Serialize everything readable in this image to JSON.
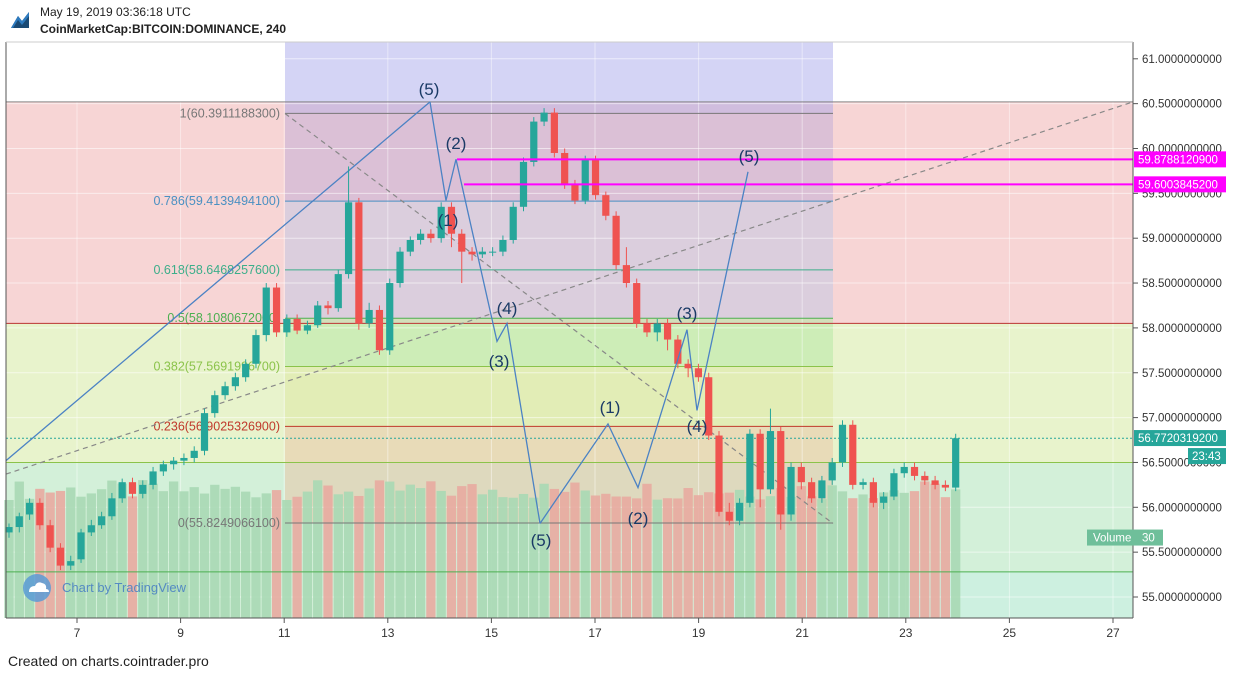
{
  "header": {
    "timestamp": "May 19, 2019 03:36:18 UTC",
    "symbol": "CoinMarketCap:BITCOIN:DOMINANCE, 240"
  },
  "footer": {
    "credit": "Created on charts.cointrader.pro"
  },
  "watermark": {
    "text": "Chart by TradingView"
  },
  "colors": {
    "up": "#26a69a",
    "down": "#ef5350",
    "magenta": "#ff00ff",
    "wave": "#4b82c4",
    "fib_zone": "#9fa0e8",
    "red_zone": "#f4c7c7",
    "green_zone": "#c8ecd0",
    "lime_zone": "#e6f2c6"
  },
  "chart_data": {
    "type": "candlestick",
    "x_axis": {
      "ticks": [
        "7",
        "9",
        "11",
        "13",
        "15",
        "17",
        "19",
        "21",
        "23",
        "25",
        "27"
      ]
    },
    "y_axis": {
      "ylim": [
        54.7,
        61.2
      ],
      "ticks": [
        "61.0000000000",
        "60.5000000000",
        "60.0000000000",
        "59.5000000000",
        "59.0000000000",
        "58.5000000000",
        "58.0000000000",
        "57.5000000000",
        "57.0000000000",
        "56.5000000000",
        "56.0000000000",
        "55.5000000000",
        "55.0000000000"
      ]
    },
    "candles": [
      [
        55.72,
        55.78,
        55.66,
        55.82
      ],
      [
        55.78,
        55.9,
        55.72,
        55.94
      ],
      [
        55.92,
        56.05,
        55.86,
        56.1
      ],
      [
        56.05,
        55.8,
        55.75,
        56.1
      ],
      [
        55.8,
        55.55,
        55.5,
        55.86
      ],
      [
        55.55,
        55.35,
        55.3,
        55.6
      ],
      [
        55.35,
        55.4,
        55.3,
        55.46
      ],
      [
        55.42,
        55.72,
        55.38,
        55.76
      ],
      [
        55.72,
        55.8,
        55.68,
        55.86
      ],
      [
        55.8,
        55.9,
        55.76,
        55.95
      ],
      [
        55.9,
        56.1,
        55.86,
        56.16
      ],
      [
        56.1,
        56.28,
        56.05,
        56.32
      ],
      [
        56.28,
        56.15,
        56.1,
        56.33
      ],
      [
        56.15,
        56.25,
        56.1,
        56.3
      ],
      [
        56.25,
        56.4,
        56.2,
        56.45
      ],
      [
        56.4,
        56.48,
        56.35,
        56.52
      ],
      [
        56.48,
        56.52,
        56.42,
        56.56
      ],
      [
        56.52,
        56.55,
        56.47,
        56.6
      ],
      [
        56.55,
        56.63,
        56.5,
        56.68
      ],
      [
        56.63,
        57.05,
        56.58,
        57.1
      ],
      [
        57.05,
        57.25,
        57.0,
        57.3
      ],
      [
        57.25,
        57.35,
        57.2,
        57.4
      ],
      [
        57.35,
        57.45,
        57.3,
        57.5
      ],
      [
        57.45,
        57.6,
        57.4,
        57.65
      ],
      [
        57.6,
        57.92,
        57.55,
        57.98
      ],
      [
        57.92,
        58.45,
        57.85,
        58.5
      ],
      [
        58.45,
        57.95,
        57.9,
        58.5
      ],
      [
        57.95,
        58.1,
        57.9,
        58.15
      ],
      [
        58.1,
        57.97,
        57.93,
        58.15
      ],
      [
        57.97,
        58.03,
        57.93,
        58.08
      ],
      [
        58.03,
        58.25,
        58.0,
        58.3
      ],
      [
        58.25,
        58.22,
        58.15,
        58.3
      ],
      [
        58.22,
        58.6,
        58.18,
        58.65
      ],
      [
        58.6,
        59.4,
        58.55,
        59.8
      ],
      [
        59.4,
        58.05,
        57.98,
        59.45
      ],
      [
        58.05,
        58.2,
        58.0,
        58.28
      ],
      [
        58.2,
        57.75,
        57.7,
        58.25
      ],
      [
        57.75,
        58.5,
        57.7,
        58.55
      ],
      [
        58.5,
        58.85,
        58.45,
        58.9
      ],
      [
        58.85,
        58.98,
        58.8,
        59.02
      ],
      [
        58.98,
        59.05,
        58.93,
        59.1
      ],
      [
        59.05,
        59.0,
        58.95,
        59.1
      ],
      [
        59.0,
        59.35,
        58.95,
        59.4
      ],
      [
        59.35,
        59.05,
        58.9,
        59.4
      ],
      [
        59.05,
        58.85,
        58.5,
        59.1
      ],
      [
        58.85,
        58.82,
        58.75,
        58.9
      ],
      [
        58.82,
        58.85,
        58.78,
        58.9
      ],
      [
        58.85,
        58.85,
        58.8,
        58.9
      ],
      [
        58.85,
        58.98,
        58.8,
        59.03
      ],
      [
        58.98,
        59.35,
        58.94,
        59.4
      ],
      [
        59.35,
        59.85,
        59.3,
        59.9
      ],
      [
        59.85,
        60.3,
        59.8,
        60.35
      ],
      [
        60.3,
        60.4,
        60.25,
        60.45
      ],
      [
        60.4,
        59.95,
        59.9,
        60.45
      ],
      [
        59.95,
        59.6,
        59.55,
        60.0
      ],
      [
        59.6,
        59.42,
        59.38,
        59.65
      ],
      [
        59.42,
        59.88,
        59.38,
        59.92
      ],
      [
        59.88,
        59.48,
        59.43,
        59.92
      ],
      [
        59.48,
        59.25,
        59.2,
        59.52
      ],
      [
        59.25,
        58.7,
        58.65,
        59.3
      ],
      [
        58.7,
        58.5,
        58.45,
        58.9
      ],
      [
        58.5,
        58.05,
        58.0,
        58.55
      ],
      [
        58.05,
        57.95,
        57.9,
        58.1
      ],
      [
        57.95,
        58.05,
        57.85,
        58.1
      ],
      [
        58.05,
        57.87,
        57.75,
        58.1
      ],
      [
        57.87,
        57.6,
        57.55,
        57.92
      ],
      [
        57.6,
        57.55,
        57.45,
        57.65
      ],
      [
        57.55,
        57.45,
        57.4,
        57.6
      ],
      [
        57.45,
        56.8,
        56.75,
        57.5
      ],
      [
        56.8,
        55.95,
        55.9,
        56.85
      ],
      [
        55.95,
        55.85,
        55.8,
        56.05
      ],
      [
        55.85,
        56.05,
        55.8,
        56.1
      ],
      [
        56.05,
        56.82,
        56.0,
        56.87
      ],
      [
        56.82,
        56.2,
        56.0,
        56.87
      ],
      [
        56.2,
        56.85,
        56.15,
        57.1
      ],
      [
        56.85,
        55.92,
        55.75,
        56.9
      ],
      [
        55.92,
        56.45,
        55.85,
        56.5
      ],
      [
        56.45,
        56.28,
        56.2,
        56.5
      ],
      [
        56.28,
        56.1,
        56.05,
        56.33
      ],
      [
        56.1,
        56.3,
        56.05,
        56.35
      ],
      [
        56.3,
        56.5,
        56.25,
        56.55
      ],
      [
        56.5,
        56.92,
        56.45,
        56.97
      ],
      [
        56.92,
        56.25,
        56.2,
        56.97
      ],
      [
        56.25,
        56.28,
        56.2,
        56.32
      ],
      [
        56.28,
        56.05,
        56.0,
        56.33
      ],
      [
        56.05,
        56.12,
        55.98,
        56.17
      ],
      [
        56.12,
        56.38,
        56.08,
        56.43
      ],
      [
        56.38,
        56.45,
        56.33,
        56.5
      ],
      [
        56.45,
        56.35,
        56.3,
        56.5
      ],
      [
        56.35,
        56.3,
        56.25,
        56.4
      ],
      [
        56.3,
        56.25,
        56.2,
        56.35
      ],
      [
        56.25,
        56.22,
        56.18,
        56.3
      ],
      [
        56.22,
        56.77,
        56.18,
        56.82
      ]
    ],
    "volume_last": "30",
    "price_labels": [
      "59.8788120900",
      "59.6003845200",
      "56.7720319200"
    ],
    "countdown": "23:43",
    "volume_label": "Volume",
    "fib_levels": [
      {
        "label": "1(60.3911188300)",
        "value": 60.39111883,
        "color": "#777777"
      },
      {
        "label": "0.786(59.4139494100)",
        "value": 59.41394941,
        "color": "#4a90c2"
      },
      {
        "label": "0.618(58.6468257600)",
        "value": 58.64682576,
        "color": "#3cae8a"
      },
      {
        "label": "0.5(58.1080672000)",
        "value": 58.1080672,
        "color": "#4caf50"
      },
      {
        "label": "0.382(57.5691996700)",
        "value": 57.56919967,
        "color": "#8bc34a"
      },
      {
        "label": "0.236(56.9025326900)",
        "value": 56.90253269,
        "color": "#c0392b"
      },
      {
        "label": "0(55.8249066100)",
        "value": 55.82490661,
        "color": "#777777"
      }
    ],
    "wave_labels": [
      "(5)",
      "(2)",
      "(1)",
      "(4)",
      "(3)",
      "(5)",
      "(1)",
      "(2)",
      "(3)",
      "(4)",
      "(5)"
    ]
  }
}
